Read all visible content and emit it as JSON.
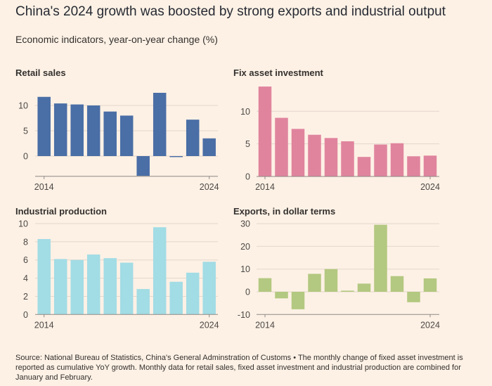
{
  "title": "China's 2024 growth was boosted by strong exports and industrial output",
  "subtitle": "Economic indicators, year-on-year change (%)",
  "source": "Source: National Bureau of Statistics, China's General Adminstration of Customs • The monthly change of fixed asset investment is reported as cumulative YoY growth. Monthly data for retail sales, fixed asset investment and industrial production are combined for January and February.",
  "chart_data": [
    {
      "type": "bar",
      "title": "Retail sales",
      "categories": [
        "2014",
        "2015",
        "2016",
        "2017",
        "2018",
        "2019",
        "2020",
        "2021",
        "2022",
        "2023",
        "2024"
      ],
      "x_tick_labels": [
        "2014",
        "2024"
      ],
      "values": [
        11.7,
        10.4,
        10.2,
        10.0,
        8.8,
        8.0,
        -3.9,
        12.5,
        -0.2,
        7.2,
        3.5
      ],
      "yticks": [
        0,
        5,
        10
      ],
      "ylim": [
        -4,
        13
      ],
      "color": "#4a6ea6",
      "grid": true
    },
    {
      "type": "bar",
      "title": "Fix asset investment",
      "categories": [
        "2014",
        "2015",
        "2016",
        "2017",
        "2018",
        "2019",
        "2020",
        "2021",
        "2022",
        "2023",
        "2024"
      ],
      "x_tick_labels": [
        "2014",
        "2024"
      ],
      "values": [
        13.8,
        9.0,
        7.3,
        6.4,
        5.9,
        5.4,
        3.0,
        4.9,
        5.1,
        3.1,
        3.2
      ],
      "yticks": [
        0,
        5,
        10
      ],
      "ylim": [
        0,
        14
      ],
      "color": "#e0849e",
      "grid": true
    },
    {
      "type": "bar",
      "title": "Industrial production",
      "categories": [
        "2014",
        "2015",
        "2016",
        "2017",
        "2018",
        "2019",
        "2020",
        "2021",
        "2022",
        "2023",
        "2024"
      ],
      "x_tick_labels": [
        "2014",
        "2024"
      ],
      "values": [
        8.3,
        6.1,
        6.0,
        6.6,
        6.2,
        5.7,
        2.8,
        9.6,
        3.6,
        4.6,
        5.8
      ],
      "yticks": [
        0,
        2,
        4,
        6,
        8,
        10
      ],
      "ylim": [
        0,
        10
      ],
      "color": "#a2dce5",
      "grid": true
    },
    {
      "type": "bar",
      "title": "Exports, in dollar terms",
      "categories": [
        "2014",
        "2015",
        "2016",
        "2017",
        "2018",
        "2019",
        "2020",
        "2021",
        "2022",
        "2023",
        "2024"
      ],
      "x_tick_labels": [
        "2014",
        "2024"
      ],
      "values": [
        6.0,
        -2.9,
        -7.7,
        7.9,
        10.0,
        0.5,
        3.6,
        29.5,
        6.9,
        -4.6,
        5.9
      ],
      "yticks": [
        -10,
        0,
        10,
        20,
        30
      ],
      "ylim": [
        -10,
        30
      ],
      "color": "#b3c880",
      "grid": true
    }
  ]
}
